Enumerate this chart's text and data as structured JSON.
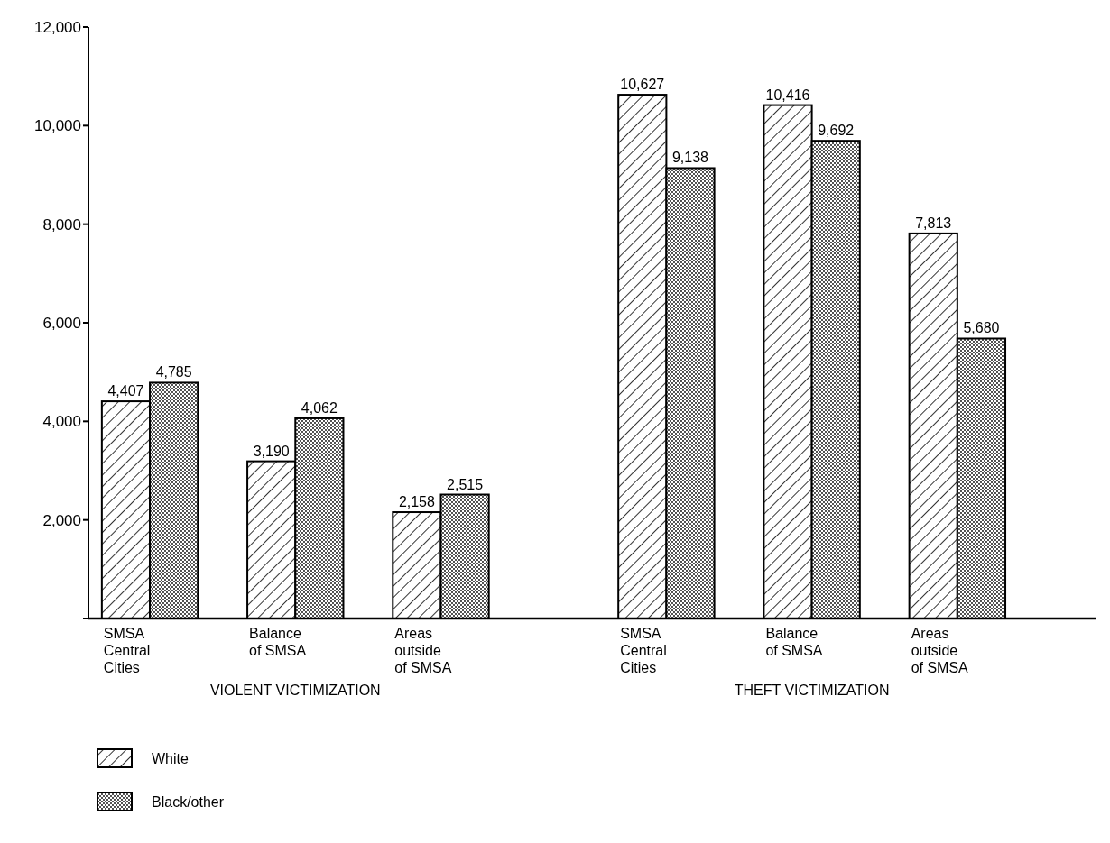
{
  "chart_data": {
    "type": "bar",
    "categories": [
      "SMSA\nCentral\nCities",
      "Balance\nof SMSA",
      "Areas\noutside\nof SMSA",
      "SMSA\nCentral\nCities",
      "Balance\nof SMSA",
      "Areas\noutside\nof SMSA"
    ],
    "series": [
      {
        "name": "White",
        "color": "#000000",
        "values": [
          4407,
          3190,
          2158,
          10627,
          10416,
          7813
        ],
        "value_labels": [
          "4,407",
          "3,190",
          "2,158",
          "10,627",
          "10,416",
          "7,813"
        ]
      },
      {
        "name": "Black/other",
        "color": "#000000",
        "values": [
          4785,
          4062,
          2515,
          9138,
          9692,
          5680
        ],
        "value_labels": [
          "4,785",
          "4,062",
          "2,515",
          "9,138",
          "9,692",
          "5,680"
        ]
      }
    ],
    "ylim": [
      0,
      12000
    ],
    "yticks": [
      {
        "value": 0,
        "label": null
      },
      {
        "value": 2000,
        "label": "2,000"
      },
      {
        "value": 4000,
        "label": "4,000"
      },
      {
        "value": 6000,
        "label": "6,000"
      },
      {
        "value": 8000,
        "label": "8,000"
      },
      {
        "value": 10000,
        "label": "10,000"
      },
      {
        "value": 12000,
        "label": "12,000"
      }
    ],
    "annotations": [
      "VIOLENT VICTIMIZATION",
      "THEFT VICTIMIZATION"
    ],
    "legend": "bottom left"
  }
}
